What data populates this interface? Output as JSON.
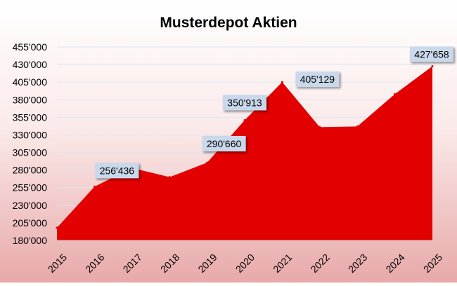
{
  "chart_data": {
    "type": "area",
    "title": "Musterdepot Aktien",
    "categories": [
      "2015",
      "2016",
      "2017",
      "2018",
      "2019",
      "2020",
      "2021",
      "2022",
      "2023",
      "2024",
      "2025"
    ],
    "series": [
      {
        "values": [
          198000,
          256436,
          283000,
          270000,
          290660,
          350913,
          405129,
          341000,
          342000,
          388000,
          427658
        ]
      }
    ],
    "ylim": [
      180000,
      455000
    ],
    "yticks": [
      "180'000",
      "205'000",
      "230'000",
      "255'000",
      "280'000",
      "305'000",
      "330'000",
      "355'000",
      "380'000",
      "405'000",
      "430'000",
      "455'000"
    ],
    "data_labels": [
      {
        "index": 1,
        "text": "256'436"
      },
      {
        "index": 4,
        "text": "290'660"
      },
      {
        "index": 5,
        "text": "350'913"
      },
      {
        "index": 6,
        "text": "405'129"
      },
      {
        "index": 10,
        "text": "427'658"
      }
    ],
    "grid": true,
    "colors": {
      "area": "#e20000",
      "label_box": "#c9d8ea",
      "gridline": "#dde6f0",
      "background_top": "#ffffff",
      "background_bottom": "#e8a9a9"
    }
  }
}
